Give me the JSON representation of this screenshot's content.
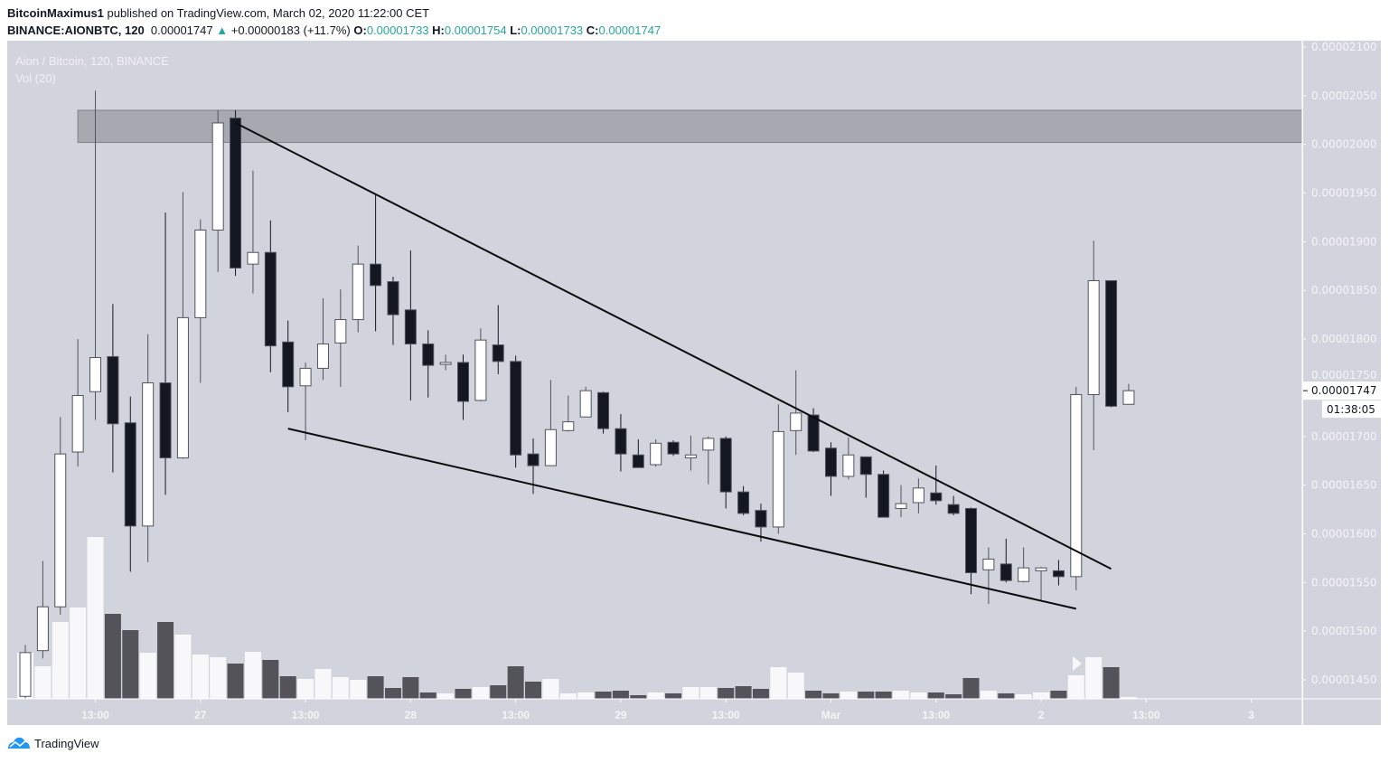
{
  "header": {
    "publisher": "BitcoinMaximus1",
    "published_text": "published on TradingView.com, March 02, 2020 11:22:00 CET",
    "symbol": "BINANCE:AIONBTC, 120",
    "last": "0.00001747",
    "change": "+0.00000183 (+11.7%)",
    "o_label": "O:",
    "o": "0.00001733",
    "h_label": "H:",
    "h": "0.00001754",
    "l_label": "L:",
    "l": "0.00001733",
    "c_label": "C:",
    "c": "0.00001747",
    "up_color": "#26a69a"
  },
  "legend": {
    "series": "Aion / Bitcoin, 120, BINANCE",
    "volume": "Vol (20)"
  },
  "branding": {
    "logo_text": "TradingView"
  },
  "colors": {
    "background": "#d1d4dc",
    "up_body": "#ffffff",
    "down_body": "#131722",
    "vol_up": "#f8f8fa",
    "vol_down": "#535359",
    "zone": "#a4a6ad"
  },
  "chart_data": {
    "type": "candlestick",
    "title": "Aion / Bitcoin, 120, BINANCE",
    "interval_minutes": 120,
    "ylim": [
      1.425e-05,
      2.11e-05
    ],
    "yticks": [
      "0.00002100",
      "0.00002050",
      "0.00002000",
      "0.00001950",
      "0.00001900",
      "0.00001850",
      "0.00001800",
      "0.00001750",
      "0.00001700",
      "0.00001650",
      "0.00001600",
      "0.00001550",
      "0.00001500",
      "0.00001450"
    ],
    "xticks": [
      {
        "label": "13:00",
        "time": "2020-02-26T13:00"
      },
      {
        "label": "27",
        "time": "2020-02-27T01:00"
      },
      {
        "label": "13:00",
        "time": "2020-02-27T13:00"
      },
      {
        "label": "28",
        "time": "2020-02-28T01:00"
      },
      {
        "label": "13:00",
        "time": "2020-02-28T13:00"
      },
      {
        "label": "29",
        "time": "2020-02-29T01:00"
      },
      {
        "label": "13:00",
        "time": "2020-02-29T13:00"
      },
      {
        "label": "Mar",
        "time": "2020-03-01T01:00"
      },
      {
        "label": "13:00",
        "time": "2020-03-01T13:00"
      },
      {
        "label": "2",
        "time": "2020-03-02T01:00"
      },
      {
        "label": "13:00",
        "time": "2020-03-02T13:00"
      },
      {
        "label": "3",
        "time": "2020-03-03T01:00"
      }
    ],
    "last_price_label": "0.00001747",
    "countdown": "01:38:05",
    "candles_ohlc": [
      [
        1433,
        1486,
        1430,
        1478
      ],
      [
        1480,
        1572,
        1472,
        1525
      ],
      [
        1525,
        1720,
        1517,
        1682
      ],
      [
        1684,
        1800,
        1669,
        1742
      ],
      [
        1746,
        2055,
        1717,
        1781
      ],
      [
        1782,
        1836,
        1663,
        1713
      ],
      [
        1714,
        1741,
        1561,
        1608
      ],
      [
        1608,
        1805,
        1571,
        1755
      ],
      [
        1755,
        1930,
        1640,
        1678
      ],
      [
        1678,
        1951,
        1677,
        1822
      ],
      [
        1822,
        1923,
        1755,
        1912
      ],
      [
        1912,
        2035,
        1869,
        2022
      ],
      [
        2027,
        2035,
        1865,
        1873
      ],
      [
        1877,
        1973,
        1847,
        1889
      ],
      [
        1889,
        1922,
        1766,
        1793
      ],
      [
        1797,
        1819,
        1725,
        1751
      ],
      [
        1752,
        1776,
        1696,
        1770
      ],
      [
        1770,
        1842,
        1758,
        1795
      ],
      [
        1796,
        1851,
        1751,
        1820
      ],
      [
        1820,
        1896,
        1807,
        1877
      ],
      [
        1877,
        1949,
        1808,
        1855
      ],
      [
        1859,
        1864,
        1794,
        1825
      ],
      [
        1830,
        1891,
        1737,
        1795
      ],
      [
        1795,
        1809,
        1740,
        1773
      ],
      [
        1774,
        1784,
        1768,
        1776
      ],
      [
        1776,
        1784,
        1717,
        1736
      ],
      [
        1737,
        1811,
        1736,
        1799
      ],
      [
        1794,
        1835,
        1764,
        1777
      ],
      [
        1777,
        1783,
        1668,
        1681
      ],
      [
        1682,
        1698,
        1641,
        1670
      ],
      [
        1670,
        1758,
        1670,
        1707
      ],
      [
        1706,
        1742,
        1705,
        1715
      ],
      [
        1720,
        1751,
        1720,
        1747
      ],
      [
        1745,
        1746,
        1703,
        1708
      ],
      [
        1708,
        1723,
        1664,
        1682
      ],
      [
        1681,
        1697,
        1668,
        1668
      ],
      [
        1671,
        1697,
        1669,
        1693
      ],
      [
        1694,
        1696,
        1680,
        1682
      ],
      [
        1678,
        1701,
        1665,
        1681
      ],
      [
        1686,
        1700,
        1651,
        1698
      ],
      [
        1698,
        1700,
        1626,
        1643
      ],
      [
        1643,
        1649,
        1619,
        1621
      ],
      [
        1624,
        1631,
        1592,
        1607
      ],
      [
        1607,
        1733,
        1600,
        1705
      ],
      [
        1706,
        1768,
        1681,
        1724
      ],
      [
        1722,
        1729,
        1684,
        1685
      ],
      [
        1688,
        1694,
        1639,
        1659
      ],
      [
        1659,
        1699,
        1656,
        1681
      ],
      [
        1679,
        1679,
        1637,
        1661
      ],
      [
        1661,
        1665,
        1617,
        1617
      ],
      [
        1626,
        1650,
        1617,
        1631
      ],
      [
        1632,
        1657,
        1621,
        1647
      ],
      [
        1642,
        1670,
        1630,
        1634
      ],
      [
        1630,
        1639,
        1619,
        1621
      ],
      [
        1626,
        1627,
        1538,
        1560
      ],
      [
        1563,
        1586,
        1528,
        1574
      ],
      [
        1569,
        1595,
        1550,
        1552
      ],
      [
        1551,
        1586,
        1550,
        1565
      ],
      [
        1562,
        1566,
        1532,
        1565
      ],
      [
        1562,
        1573,
        1547,
        1556
      ],
      [
        1556,
        1751,
        1542,
        1743
      ],
      [
        1743,
        1901,
        1686,
        1860
      ],
      [
        1860,
        1860,
        1730,
        1731
      ],
      [
        1733,
        1754,
        1733,
        1747
      ]
    ],
    "price_scale_note": "candles_ohlc values are prices x 1e-8 BTC (e.g. 1747 = 0.00001747)",
    "volume_relative": [
      51,
      36,
      85,
      101,
      179,
      94,
      76,
      51,
      85,
      71,
      49,
      46,
      39,
      52,
      43,
      25,
      22,
      33,
      24,
      21,
      25,
      12,
      24,
      7,
      6,
      11,
      13,
      15,
      36,
      19,
      22,
      6,
      7,
      8,
      9,
      4,
      7,
      6,
      13,
      13,
      12,
      14,
      11,
      35,
      29,
      9,
      6,
      8,
      8,
      8,
      9,
      7,
      7,
      5,
      23,
      9,
      6,
      5,
      7,
      9,
      26,
      46,
      35,
      2
    ],
    "first_candle_time": "2020-02-26T05:00",
    "drawings": {
      "resistance_zone": {
        "from_time": "2020-02-26T11:00",
        "price_low": 2.002e-05,
        "price_high": 2.035e-05
      },
      "upper_trendline": [
        {
          "time": "2020-02-27T05:00",
          "price": 2.022e-05
        },
        {
          "time": "2020-03-02T09:00",
          "price": 1.564e-05
        }
      ],
      "lower_trendline": [
        {
          "time": "2020-02-27T11:00",
          "price": 1.708e-05
        },
        {
          "time": "2020-03-02T05:00",
          "price": 1.523e-05
        }
      ]
    }
  }
}
